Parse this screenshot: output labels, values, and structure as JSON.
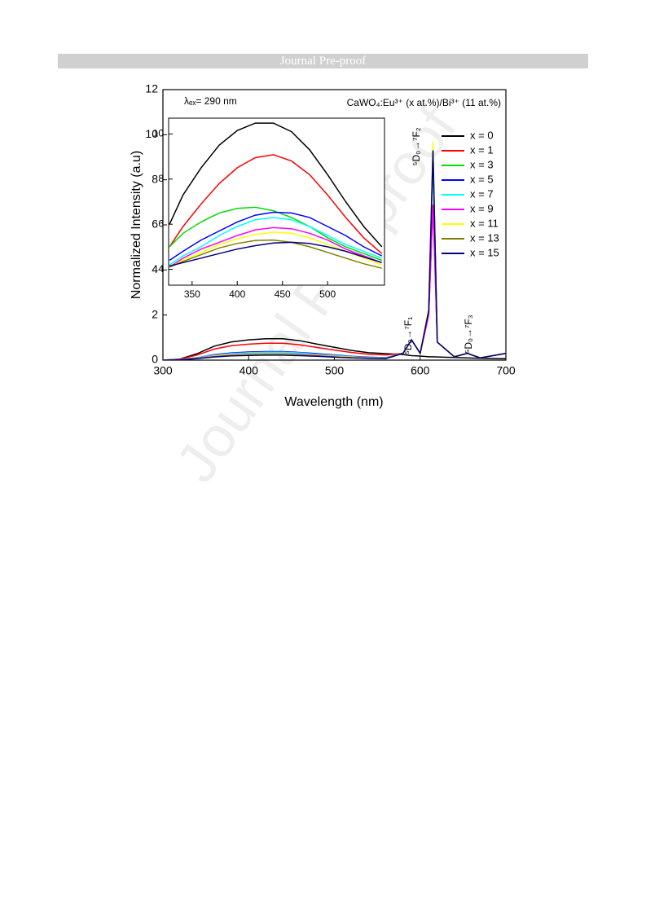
{
  "header": {
    "title": "Journal Pre-proof"
  },
  "chart_data": {
    "type": "line",
    "xlabel": "Wavelength (nm)",
    "ylabel": "Normalized Intensity (a.u)",
    "annotations": {
      "excitation": "λₑₓ= 290 nm",
      "sample": "CaWO₄:Eu³⁺ (x at.%)/Bi³⁺ (11 at.%)",
      "f2": "⁵D₀→⁷F₂",
      "f1": "⁵D₀→⁷F₁",
      "f3": "⁵D₀→⁷F₃"
    },
    "xlim": [
      300,
      700
    ],
    "ylim": [
      0,
      12
    ],
    "xticks": [
      300,
      400,
      500,
      600,
      700
    ],
    "yticks": [
      0,
      2,
      4,
      6,
      8,
      10,
      12
    ],
    "legend": "upper right",
    "x": [
      300,
      320,
      340,
      360,
      380,
      400,
      420,
      440,
      460,
      480,
      500,
      520,
      540,
      560,
      580,
      590,
      600,
      610,
      615,
      620,
      640,
      655,
      670,
      700
    ],
    "series": [
      {
        "name": "x = 0",
        "color": "#000000",
        "values": [
          0,
          0.05,
          0.29,
          0.62,
          0.81,
          0.9,
          0.95,
          0.95,
          0.86,
          0.71,
          0.57,
          0.43,
          0.33,
          0.29,
          0.25,
          0.2,
          0.18,
          0.15,
          0.15,
          0.14,
          0.12,
          0.1,
          0.08,
          0.06
        ]
      },
      {
        "name": "x = 1",
        "color": "#ff0000",
        "values": [
          0,
          0.04,
          0.23,
          0.49,
          0.64,
          0.71,
          0.75,
          0.75,
          0.68,
          0.56,
          0.45,
          0.34,
          0.26,
          0.23,
          0.3,
          0.9,
          0.3,
          2.0,
          6.9,
          0.8,
          0.15,
          0.3,
          0.1,
          0.3
        ]
      },
      {
        "name": "x = 3",
        "color": "#00dd00",
        "values": [
          0,
          0.02,
          0.11,
          0.23,
          0.3,
          0.33,
          0.35,
          0.35,
          0.32,
          0.26,
          0.21,
          0.16,
          0.12,
          0.11,
          0.3,
          0.9,
          0.3,
          2.2,
          9.0,
          0.8,
          0.15,
          0.3,
          0.1,
          0.3
        ]
      },
      {
        "name": "x = 5",
        "color": "#0000ff",
        "values": [
          0,
          0.02,
          0.11,
          0.25,
          0.32,
          0.36,
          0.38,
          0.38,
          0.34,
          0.29,
          0.23,
          0.17,
          0.13,
          0.11,
          0.3,
          0.9,
          0.3,
          2.2,
          9.2,
          0.8,
          0.15,
          0.3,
          0.1,
          0.3
        ]
      },
      {
        "name": "x = 7",
        "color": "#00ffff",
        "values": [
          0,
          0.02,
          0.11,
          0.23,
          0.3,
          0.33,
          0.35,
          0.35,
          0.32,
          0.26,
          0.21,
          0.16,
          0.12,
          0.11,
          0.3,
          0.9,
          0.3,
          2.2,
          9.0,
          0.8,
          0.15,
          0.3,
          0.1,
          0.3
        ]
      },
      {
        "name": "x = 9",
        "color": "#ff00ff",
        "values": [
          0,
          0.02,
          0.09,
          0.2,
          0.26,
          0.29,
          0.3,
          0.3,
          0.27,
          0.23,
          0.18,
          0.14,
          0.11,
          0.09,
          0.3,
          0.9,
          0.3,
          2.0,
          6.9,
          0.8,
          0.15,
          0.3,
          0.1,
          0.3
        ]
      },
      {
        "name": "x = 11",
        "color": "#ffff00",
        "values": [
          0,
          0.01,
          0.08,
          0.18,
          0.24,
          0.27,
          0.28,
          0.28,
          0.25,
          0.21,
          0.17,
          0.13,
          0.1,
          0.08,
          0.3,
          0.9,
          0.3,
          2.3,
          9.7,
          0.8,
          0.15,
          0.3,
          0.1,
          0.3
        ]
      },
      {
        "name": "x = 13",
        "color": "#808000",
        "values": [
          0,
          0.01,
          0.08,
          0.16,
          0.21,
          0.24,
          0.25,
          0.25,
          0.23,
          0.19,
          0.15,
          0.11,
          0.09,
          0.08,
          0.3,
          0.9,
          0.3,
          2.2,
          9.3,
          0.8,
          0.15,
          0.3,
          0.1,
          0.3
        ]
      },
      {
        "name": "x = 15",
        "color": "#000080",
        "values": [
          0,
          0.01,
          0.07,
          0.14,
          0.19,
          0.21,
          0.22,
          0.22,
          0.2,
          0.17,
          0.13,
          0.1,
          0.08,
          0.07,
          0.3,
          0.9,
          0.3,
          2.2,
          9.3,
          0.8,
          0.15,
          0.3,
          0.1,
          0.3
        ]
      }
    ],
    "inset": {
      "xlim": [
        324,
        563
      ],
      "ylim": [
        3.3,
        10.7
      ],
      "xticks": [
        350,
        400,
        450,
        500
      ],
      "yticks": [
        4,
        6,
        8,
        10
      ],
      "x": [
        325,
        340,
        360,
        380,
        400,
        420,
        440,
        460,
        480,
        500,
        520,
        540,
        560
      ],
      "series": [
        {
          "values": [
            6.0,
            7.3,
            8.5,
            9.5,
            10.15,
            10.48,
            10.48,
            10.1,
            9.3,
            8.2,
            7.0,
            5.9,
            5.0
          ]
        },
        {
          "values": [
            5.0,
            5.9,
            6.9,
            7.8,
            8.5,
            8.95,
            9.08,
            8.8,
            8.2,
            7.3,
            6.3,
            5.4,
            4.7
          ]
        },
        {
          "values": [
            5.0,
            5.6,
            6.1,
            6.5,
            6.7,
            6.75,
            6.6,
            6.3,
            5.9,
            5.4,
            5.0,
            4.7,
            4.4
          ]
        },
        {
          "values": [
            4.4,
            4.8,
            5.3,
            5.7,
            6.1,
            6.4,
            6.53,
            6.5,
            6.3,
            5.9,
            5.5,
            5.0,
            4.6
          ]
        },
        {
          "values": [
            4.2,
            4.6,
            5.0,
            5.5,
            5.9,
            6.2,
            6.3,
            6.2,
            5.9,
            5.5,
            5.1,
            4.8,
            4.5
          ]
        },
        {
          "values": [
            4.1,
            4.5,
            4.9,
            5.2,
            5.5,
            5.75,
            5.85,
            5.8,
            5.6,
            5.3,
            4.9,
            4.6,
            4.3
          ]
        },
        {
          "values": [
            4.1,
            4.4,
            4.75,
            5.1,
            5.35,
            5.55,
            5.65,
            5.6,
            5.4,
            5.1,
            4.8,
            4.5,
            4.2
          ]
        },
        {
          "values": [
            4.1,
            4.35,
            4.65,
            4.95,
            5.15,
            5.28,
            5.3,
            5.2,
            5.0,
            4.75,
            4.5,
            4.25,
            4.05
          ]
        },
        {
          "values": [
            4.15,
            4.3,
            4.5,
            4.7,
            4.9,
            5.05,
            5.17,
            5.2,
            5.15,
            5.0,
            4.8,
            4.55,
            4.3
          ]
        }
      ]
    }
  }
}
